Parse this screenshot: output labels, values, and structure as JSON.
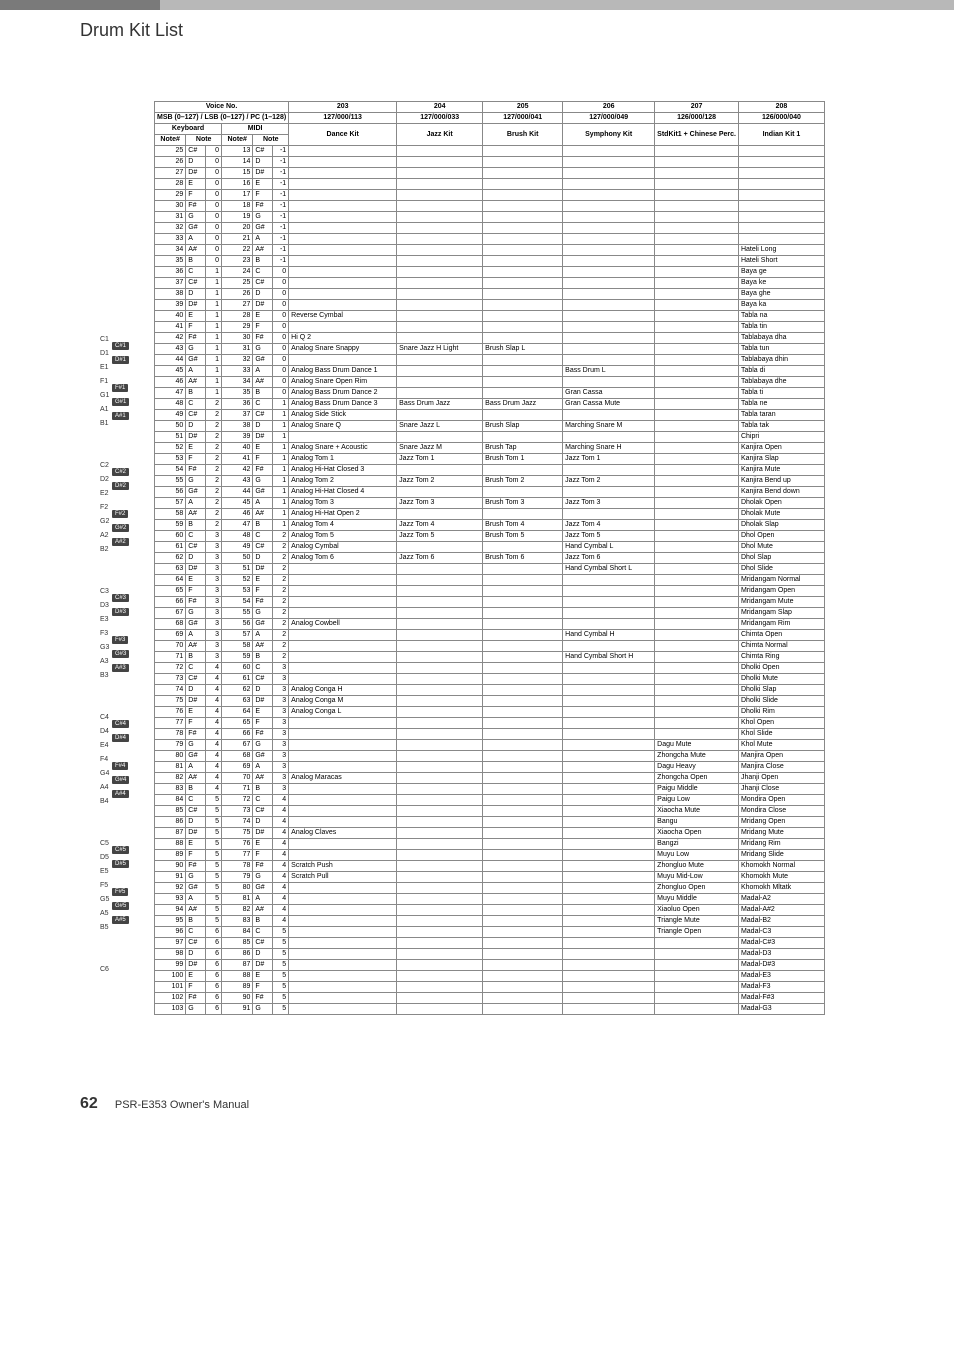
{
  "page_title": "Drum Kit List",
  "footer_page": "62",
  "footer_text": "PSR-E353  Owner's Manual",
  "headers": {
    "voice_no": "Voice No.",
    "msb": "MSB (0–127) / LSB (0–127) / PC (1–128)",
    "keyboard": "Keyboard",
    "midi": "MIDI",
    "noteNum": "Note#",
    "note": "Note",
    "c203": "203",
    "c203b": "127/000/113",
    "c203n": "Dance Kit",
    "c204": "204",
    "c204b": "127/000/033",
    "c204n": "Jazz Kit",
    "c205": "205",
    "c205b": "127/000/041",
    "c205n": "Brush Kit",
    "c206": "206",
    "c206b": "127/000/049",
    "c206n": "Symphony Kit",
    "c207": "207",
    "c207b": "126/000/128",
    "c207n": "StdKit1 + Chinese Perc.",
    "c208": "208",
    "c208b": "126/000/040",
    "c208n": "Indian Kit 1"
  },
  "rows": [
    {
      "kn": 25,
      "kt": "C#",
      "ko": 0,
      "mn": 13,
      "mt": "C#",
      "mo": -1
    },
    {
      "kn": 26,
      "kt": "D",
      "ko": 0,
      "mn": 14,
      "mt": "D",
      "mo": -1
    },
    {
      "kn": 27,
      "kt": "D#",
      "ko": 0,
      "mn": 15,
      "mt": "D#",
      "mo": -1
    },
    {
      "kn": 28,
      "kt": "E",
      "ko": 0,
      "mn": 16,
      "mt": "E",
      "mo": -1
    },
    {
      "kn": 29,
      "kt": "F",
      "ko": 0,
      "mn": 17,
      "mt": "F",
      "mo": -1
    },
    {
      "kn": 30,
      "kt": "F#",
      "ko": 0,
      "mn": 18,
      "mt": "F#",
      "mo": -1
    },
    {
      "kn": 31,
      "kt": "G",
      "ko": 0,
      "mn": 19,
      "mt": "G",
      "mo": -1
    },
    {
      "kn": 32,
      "kt": "G#",
      "ko": 0,
      "mn": 20,
      "mt": "G#",
      "mo": -1
    },
    {
      "kn": 33,
      "kt": "A",
      "ko": 0,
      "mn": 21,
      "mt": "A",
      "mo": -1
    },
    {
      "kn": 34,
      "kt": "A#",
      "ko": 0,
      "mn": 22,
      "mt": "A#",
      "mo": -1,
      "c208": "Hateli Long"
    },
    {
      "kn": 35,
      "kt": "B",
      "ko": 0,
      "mn": 23,
      "mt": "B",
      "mo": -1,
      "c208": "Hateli Short"
    },
    {
      "kn": 36,
      "kt": "C",
      "ko": 1,
      "mn": 24,
      "mt": "C",
      "mo": 0,
      "c208": "Baya ge"
    },
    {
      "kn": 37,
      "kt": "C#",
      "ko": 1,
      "mn": 25,
      "mt": "C#",
      "mo": 0,
      "c208": "Baya ke"
    },
    {
      "kn": 38,
      "kt": "D",
      "ko": 1,
      "mn": 26,
      "mt": "D",
      "mo": 0,
      "c208": "Baya ghe"
    },
    {
      "kn": 39,
      "kt": "D#",
      "ko": 1,
      "mn": 27,
      "mt": "D#",
      "mo": 0,
      "c208": "Baya ka"
    },
    {
      "kn": 40,
      "kt": "E",
      "ko": 1,
      "mn": 28,
      "mt": "E",
      "mo": 0,
      "c203": "Reverse Cymbal",
      "c208": "Tabla na"
    },
    {
      "kn": 41,
      "kt": "F",
      "ko": 1,
      "mn": 29,
      "mt": "F",
      "mo": 0,
      "c208": "Tabla tin"
    },
    {
      "kn": 42,
      "kt": "F#",
      "ko": 1,
      "mn": 30,
      "mt": "F#",
      "mo": 0,
      "c203": "Hi Q 2",
      "c208": "Tablabaya dha"
    },
    {
      "kn": 43,
      "kt": "G",
      "ko": 1,
      "mn": 31,
      "mt": "G",
      "mo": 0,
      "c203": "Analog Snare Snappy",
      "c204": "Snare Jazz H Light",
      "c205": "Brush Slap L",
      "c208": "Tabla tun"
    },
    {
      "kn": 44,
      "kt": "G#",
      "ko": 1,
      "mn": 32,
      "mt": "G#",
      "mo": 0,
      "c208": "Tablabaya dhin"
    },
    {
      "kn": 45,
      "kt": "A",
      "ko": 1,
      "mn": 33,
      "mt": "A",
      "mo": 0,
      "c203": "Analog Bass Drum Dance 1",
      "c206": "Bass Drum L",
      "c208": "Tabla di"
    },
    {
      "kn": 46,
      "kt": "A#",
      "ko": 1,
      "mn": 34,
      "mt": "A#",
      "mo": 0,
      "c203": "Analog Snare Open Rim",
      "c208": "Tablabaya dhe"
    },
    {
      "kn": 47,
      "kt": "B",
      "ko": 1,
      "mn": 35,
      "mt": "B",
      "mo": 0,
      "c203": "Analog Bass Drum Dance 2",
      "c206": "Gran Cassa",
      "c208": "Tabla ti"
    },
    {
      "kn": 48,
      "kt": "C",
      "ko": 2,
      "mn": 36,
      "mt": "C",
      "mo": 1,
      "c203": "Analog Bass Drum Dance 3",
      "c204": "Bass Drum Jazz",
      "c205": "Bass Drum Jazz",
      "c206": "Gran Cassa Mute",
      "c208": "Tabla ne"
    },
    {
      "kn": 49,
      "kt": "C#",
      "ko": 2,
      "mn": 37,
      "mt": "C#",
      "mo": 1,
      "c203": "Analog Side Stick",
      "c208": "Tabla taran"
    },
    {
      "kn": 50,
      "kt": "D",
      "ko": 2,
      "mn": 38,
      "mt": "D",
      "mo": 1,
      "c203": "Analog Snare Q",
      "c204": "Snare Jazz L",
      "c205": "Brush Slap",
      "c206": "Marching Snare M",
      "c208": "Tabla tak"
    },
    {
      "kn": 51,
      "kt": "D#",
      "ko": 2,
      "mn": 39,
      "mt": "D#",
      "mo": 1,
      "c208": "Chipri"
    },
    {
      "kn": 52,
      "kt": "E",
      "ko": 2,
      "mn": 40,
      "mt": "E",
      "mo": 1,
      "c203": "Analog Snare + Acoustic",
      "c204": "Snare Jazz M",
      "c205": "Brush Tap",
      "c206": "Marching Snare H",
      "c208": "Kanjira Open"
    },
    {
      "kn": 53,
      "kt": "F",
      "ko": 2,
      "mn": 41,
      "mt": "F",
      "mo": 1,
      "c203": "Analog Tom 1",
      "c204": "Jazz Tom 1",
      "c205": "Brush Tom 1",
      "c206": "Jazz Tom 1",
      "c208": "Kanjira Slap"
    },
    {
      "kn": 54,
      "kt": "F#",
      "ko": 2,
      "mn": 42,
      "mt": "F#",
      "mo": 1,
      "c203": "Analog Hi-Hat Closed 3",
      "c208": "Kanjira Mute"
    },
    {
      "kn": 55,
      "kt": "G",
      "ko": 2,
      "mn": 43,
      "mt": "G",
      "mo": 1,
      "c203": "Analog Tom 2",
      "c204": "Jazz Tom 2",
      "c205": "Brush Tom 2",
      "c206": "Jazz Tom 2",
      "c208": "Kanjira Bend up"
    },
    {
      "kn": 56,
      "kt": "G#",
      "ko": 2,
      "mn": 44,
      "mt": "G#",
      "mo": 1,
      "c203": "Analog Hi-Hat Closed 4",
      "c208": "Kanjira Bend down"
    },
    {
      "kn": 57,
      "kt": "A",
      "ko": 2,
      "mn": 45,
      "mt": "A",
      "mo": 1,
      "c203": "Analog Tom 3",
      "c204": "Jazz Tom 3",
      "c205": "Brush Tom 3",
      "c206": "Jazz Tom 3",
      "c208": "Dholak Open"
    },
    {
      "kn": 58,
      "kt": "A#",
      "ko": 2,
      "mn": 46,
      "mt": "A#",
      "mo": 1,
      "c203": "Analog Hi-Hat Open 2",
      "c208": "Dholak Mute"
    },
    {
      "kn": 59,
      "kt": "B",
      "ko": 2,
      "mn": 47,
      "mt": "B",
      "mo": 1,
      "c203": "Analog Tom 4",
      "c204": "Jazz Tom 4",
      "c205": "Brush Tom 4",
      "c206": "Jazz Tom 4",
      "c208": "Dholak Slap"
    },
    {
      "kn": 60,
      "kt": "C",
      "ko": 3,
      "mn": 48,
      "mt": "C",
      "mo": 2,
      "c203": "Analog Tom 5",
      "c204": "Jazz Tom 5",
      "c205": "Brush Tom 5",
      "c206": "Jazz Tom 5",
      "c208": "Dhol Open"
    },
    {
      "kn": 61,
      "kt": "C#",
      "ko": 3,
      "mn": 49,
      "mt": "C#",
      "mo": 2,
      "c203": "Analog Cymbal",
      "c206": "Hand Cymbal L",
      "c208": "Dhol Mute"
    },
    {
      "kn": 62,
      "kt": "D",
      "ko": 3,
      "mn": 50,
      "mt": "D",
      "mo": 2,
      "c203": "Analog Tom 6",
      "c204": "Jazz Tom 6",
      "c205": "Brush Tom 6",
      "c206": "Jazz Tom 6",
      "c208": "Dhol Slap"
    },
    {
      "kn": 63,
      "kt": "D#",
      "ko": 3,
      "mn": 51,
      "mt": "D#",
      "mo": 2,
      "c206": "Hand Cymbal Short L",
      "c208": "Dhol Slide"
    },
    {
      "kn": 64,
      "kt": "E",
      "ko": 3,
      "mn": 52,
      "mt": "E",
      "mo": 2,
      "c208": "Mridangam Normal"
    },
    {
      "kn": 65,
      "kt": "F",
      "ko": 3,
      "mn": 53,
      "mt": "F",
      "mo": 2,
      "c208": "Mridangam Open"
    },
    {
      "kn": 66,
      "kt": "F#",
      "ko": 3,
      "mn": 54,
      "mt": "F#",
      "mo": 2,
      "c208": "Mridangam Mute"
    },
    {
      "kn": 67,
      "kt": "G",
      "ko": 3,
      "mn": 55,
      "mt": "G",
      "mo": 2,
      "c208": "Mridangam Slap"
    },
    {
      "kn": 68,
      "kt": "G#",
      "ko": 3,
      "mn": 56,
      "mt": "G#",
      "mo": 2,
      "c203": "Analog Cowbell",
      "c208": "Mridangam Rim"
    },
    {
      "kn": 69,
      "kt": "A",
      "ko": 3,
      "mn": 57,
      "mt": "A",
      "mo": 2,
      "c206": "Hand Cymbal H",
      "c208": "Chimta Open"
    },
    {
      "kn": 70,
      "kt": "A#",
      "ko": 3,
      "mn": 58,
      "mt": "A#",
      "mo": 2,
      "c208": "Chimta Normal"
    },
    {
      "kn": 71,
      "kt": "B",
      "ko": 3,
      "mn": 59,
      "mt": "B",
      "mo": 2,
      "c206": "Hand Cymbal Short H",
      "c208": "Chimta Ring"
    },
    {
      "kn": 72,
      "kt": "C",
      "ko": 4,
      "mn": 60,
      "mt": "C",
      "mo": 3,
      "c208": "Dholki Open"
    },
    {
      "kn": 73,
      "kt": "C#",
      "ko": 4,
      "mn": 61,
      "mt": "C#",
      "mo": 3,
      "c208": "Dholki Mute"
    },
    {
      "kn": 74,
      "kt": "D",
      "ko": 4,
      "mn": 62,
      "mt": "D",
      "mo": 3,
      "c203": "Analog Conga H",
      "c208": "Dholki Slap"
    },
    {
      "kn": 75,
      "kt": "D#",
      "ko": 4,
      "mn": 63,
      "mt": "D#",
      "mo": 3,
      "c203": "Analog Conga M",
      "c208": "Dholki Slide"
    },
    {
      "kn": 76,
      "kt": "E",
      "ko": 4,
      "mn": 64,
      "mt": "E",
      "mo": 3,
      "c203": "Analog Conga L",
      "c208": "Dholki Rim"
    },
    {
      "kn": 77,
      "kt": "F",
      "ko": 4,
      "mn": 65,
      "mt": "F",
      "mo": 3,
      "c208": "Khol Open"
    },
    {
      "kn": 78,
      "kt": "F#",
      "ko": 4,
      "mn": 66,
      "mt": "F#",
      "mo": 3,
      "c208": "Khol Slide"
    },
    {
      "kn": 79,
      "kt": "G",
      "ko": 4,
      "mn": 67,
      "mt": "G",
      "mo": 3,
      "c207": "Dagu Mute",
      "c208": "Khol Mute"
    },
    {
      "kn": 80,
      "kt": "G#",
      "ko": 4,
      "mn": 68,
      "mt": "G#",
      "mo": 3,
      "c207": "Zhongcha Mute",
      "c208": "Manjira Open"
    },
    {
      "kn": 81,
      "kt": "A",
      "ko": 4,
      "mn": 69,
      "mt": "A",
      "mo": 3,
      "c207": "Dagu Heavy",
      "c208": "Manjira Close"
    },
    {
      "kn": 82,
      "kt": "A#",
      "ko": 4,
      "mn": 70,
      "mt": "A#",
      "mo": 3,
      "c203": "Analog Maracas",
      "c207": "Zhongcha Open",
      "c208": "Jhanji Open"
    },
    {
      "kn": 83,
      "kt": "B",
      "ko": 4,
      "mn": 71,
      "mt": "B",
      "mo": 3,
      "c207": "Paigu Middle",
      "c208": "Jhanji Close"
    },
    {
      "kn": 84,
      "kt": "C",
      "ko": 5,
      "mn": 72,
      "mt": "C",
      "mo": 4,
      "c207": "Paigu Low",
      "c208": "Mondira Open"
    },
    {
      "kn": 85,
      "kt": "C#",
      "ko": 5,
      "mn": 73,
      "mt": "C#",
      "mo": 4,
      "c207": "Xiaocha Mute",
      "c208": "Mondira Close"
    },
    {
      "kn": 86,
      "kt": "D",
      "ko": 5,
      "mn": 74,
      "mt": "D",
      "mo": 4,
      "c207": "Bangu",
      "c208": "Mridang Open"
    },
    {
      "kn": 87,
      "kt": "D#",
      "ko": 5,
      "mn": 75,
      "mt": "D#",
      "mo": 4,
      "c203": "Analog Claves",
      "c207": "Xiaocha Open",
      "c208": "Mridang Mute"
    },
    {
      "kn": 88,
      "kt": "E",
      "ko": 5,
      "mn": 76,
      "mt": "E",
      "mo": 4,
      "c207": "Bangzi",
      "c208": "Mridang Rim"
    },
    {
      "kn": 89,
      "kt": "F",
      "ko": 5,
      "mn": 77,
      "mt": "F",
      "mo": 4,
      "c207": "Muyu Low",
      "c208": "Mridang Slide"
    },
    {
      "kn": 90,
      "kt": "F#",
      "ko": 5,
      "mn": 78,
      "mt": "F#",
      "mo": 4,
      "c203": "Scratch Push",
      "c207": "Zhongluo Mute",
      "c208": "Khomokh Normal"
    },
    {
      "kn": 91,
      "kt": "G",
      "ko": 5,
      "mn": 79,
      "mt": "G",
      "mo": 4,
      "c203": "Scratch Pull",
      "c207": "Muyu Mid-Low",
      "c208": "Khomokh Mute"
    },
    {
      "kn": 92,
      "kt": "G#",
      "ko": 5,
      "mn": 80,
      "mt": "G#",
      "mo": 4,
      "c207": "Zhongluo Open",
      "c208": "Khomokh Mltatk"
    },
    {
      "kn": 93,
      "kt": "A",
      "ko": 5,
      "mn": 81,
      "mt": "A",
      "mo": 4,
      "c207": "Muyu Middle",
      "c208": "Madal-A2"
    },
    {
      "kn": 94,
      "kt": "A#",
      "ko": 5,
      "mn": 82,
      "mt": "A#",
      "mo": 4,
      "c207": "Xiaoluo Open",
      "c208": "Madal-A#2"
    },
    {
      "kn": 95,
      "kt": "B",
      "ko": 5,
      "mn": 83,
      "mt": "B",
      "mo": 4,
      "c207": "Triangle Mute",
      "c208": "Madal-B2"
    },
    {
      "kn": 96,
      "kt": "C",
      "ko": 6,
      "mn": 84,
      "mt": "C",
      "mo": 5,
      "c207": "Triangle Open",
      "c208": "Madal-C3"
    },
    {
      "kn": 97,
      "kt": "C#",
      "ko": 6,
      "mn": 85,
      "mt": "C#",
      "mo": 5,
      "c208": "Madal-C#3"
    },
    {
      "kn": 98,
      "kt": "D",
      "ko": 6,
      "mn": 86,
      "mt": "D",
      "mo": 5,
      "c208": "Madal-D3"
    },
    {
      "kn": 99,
      "kt": "D#",
      "ko": 6,
      "mn": 87,
      "mt": "D#",
      "mo": 5,
      "c208": "Madal-D#3"
    },
    {
      "kn": 100,
      "kt": "E",
      "ko": 6,
      "mn": 88,
      "mt": "E",
      "mo": 5,
      "c208": "Madal-E3"
    },
    {
      "kn": 101,
      "kt": "F",
      "ko": 6,
      "mn": 89,
      "mt": "F",
      "mo": 5,
      "c208": "Madal-F3"
    },
    {
      "kn": 102,
      "kt": "F#",
      "ko": 6,
      "mn": 90,
      "mt": "F#",
      "mo": 5,
      "c208": "Madal-F#3"
    },
    {
      "kn": 103,
      "kt": "G",
      "ko": 6,
      "mn": 91,
      "mt": "G",
      "mo": 5,
      "c208": "Madal-G3"
    }
  ],
  "keyboard_labels": [
    {
      "oct": 1,
      "items": [
        [
          "C1",
          0
        ],
        [
          "C#1",
          6,
          true
        ],
        [
          "D1",
          14
        ],
        [
          "D#1",
          20,
          true
        ],
        [
          "E1",
          28
        ],
        [
          "F1",
          42
        ],
        [
          "F#1",
          48,
          true
        ],
        [
          "G1",
          56
        ],
        [
          "G#1",
          62,
          true
        ],
        [
          "A1",
          70
        ],
        [
          "A#1",
          76,
          true
        ],
        [
          "B1",
          84
        ]
      ]
    },
    {
      "oct": 2,
      "items": [
        [
          "C2",
          0
        ],
        [
          "C#2",
          6,
          true
        ],
        [
          "D2",
          14
        ],
        [
          "D#2",
          20,
          true
        ],
        [
          "E2",
          28
        ],
        [
          "F2",
          42
        ],
        [
          "F#2",
          48,
          true
        ],
        [
          "G2",
          56
        ],
        [
          "G#2",
          62,
          true
        ],
        [
          "A2",
          70
        ],
        [
          "A#2",
          76,
          true
        ],
        [
          "B2",
          84
        ]
      ]
    },
    {
      "oct": 3,
      "items": [
        [
          "C3",
          0
        ],
        [
          "C#3",
          6,
          true
        ],
        [
          "D3",
          14
        ],
        [
          "D#3",
          20,
          true
        ],
        [
          "E3",
          28
        ],
        [
          "F3",
          42
        ],
        [
          "F#3",
          48,
          true
        ],
        [
          "G3",
          56
        ],
        [
          "G#3",
          62,
          true
        ],
        [
          "A3",
          70
        ],
        [
          "A#3",
          76,
          true
        ],
        [
          "B3",
          84
        ]
      ]
    },
    {
      "oct": 4,
      "items": [
        [
          "C4",
          0
        ],
        [
          "C#4",
          6,
          true
        ],
        [
          "D4",
          14
        ],
        [
          "D#4",
          20,
          true
        ],
        [
          "E4",
          28
        ],
        [
          "F4",
          42
        ],
        [
          "F#4",
          48,
          true
        ],
        [
          "G4",
          56
        ],
        [
          "G#4",
          62,
          true
        ],
        [
          "A4",
          70
        ],
        [
          "A#4",
          76,
          true
        ],
        [
          "B4",
          84
        ]
      ]
    },
    {
      "oct": 5,
      "items": [
        [
          "C5",
          0
        ],
        [
          "C#5",
          6,
          true
        ],
        [
          "D5",
          14
        ],
        [
          "D#5",
          20,
          true
        ],
        [
          "E5",
          28
        ],
        [
          "F5",
          42
        ],
        [
          "F#5",
          48,
          true
        ],
        [
          "G5",
          56
        ],
        [
          "G#5",
          62,
          true
        ],
        [
          "A5",
          70
        ],
        [
          "A#5",
          76,
          true
        ],
        [
          "B5",
          84
        ]
      ]
    },
    {
      "oct": 6,
      "items": [
        [
          "C6",
          0
        ]
      ]
    }
  ],
  "col_widths": {
    "kn": 28,
    "kt": 18,
    "ko": 14,
    "mn": 28,
    "mt": 18,
    "mo": 14,
    "c203": 108,
    "c204": 86,
    "c205": 80,
    "c206": 92,
    "c207": 72,
    "c208": 86
  }
}
